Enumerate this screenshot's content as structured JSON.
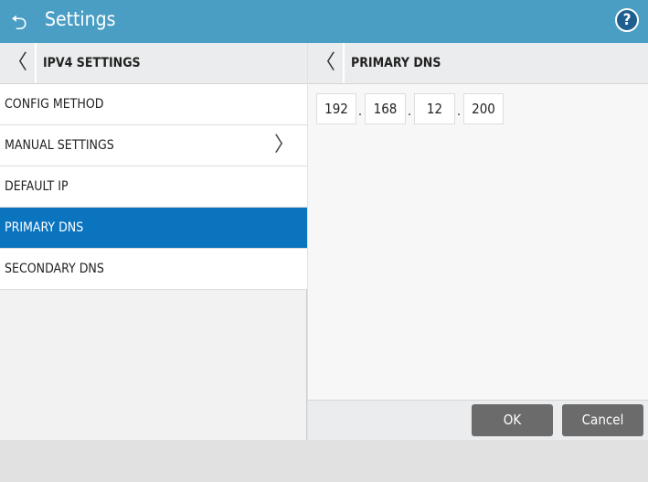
{
  "header": {
    "title": "Settings",
    "back_icon": "undo-arrow-icon",
    "help_label": "?"
  },
  "left_panel": {
    "title": "IPV4 SETTINGS",
    "back_icon": "chevron-left-icon",
    "items": [
      {
        "label": "CONFIG METHOD"
      },
      {
        "label": "MANUAL SETTINGS",
        "has_arrow": true
      },
      {
        "label": "DEFAULT IP"
      },
      {
        "label": "PRIMARY DNS",
        "selected": true
      },
      {
        "label": "SECONDARY DNS"
      }
    ]
  },
  "right_panel": {
    "title": "PRIMARY DNS",
    "back_icon": "chevron-left-icon",
    "octets": [
      "192",
      "168",
      "12",
      "200"
    ],
    "separator": "."
  },
  "buttons": {
    "ok": "OK",
    "cancel": "Cancel"
  },
  "colors": {
    "header": "#4a9ec4",
    "selected": "#0a74bf",
    "button": "#6b6b6b"
  }
}
